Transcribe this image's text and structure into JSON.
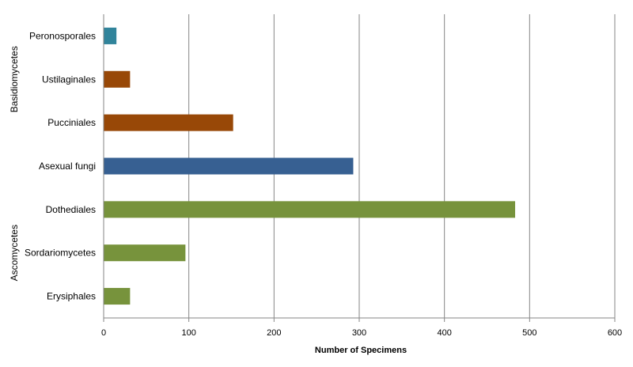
{
  "chart_data": {
    "type": "bar",
    "orientation": "horizontal",
    "categories": [
      "Peronosporales",
      "Ustilaginales",
      "Pucciniales",
      "Asexual fungi",
      "Dothediales",
      "Sordariomycetes",
      "Erysiphales"
    ],
    "values": [
      15,
      31,
      152,
      293,
      483,
      96,
      31
    ],
    "colors": [
      "#31849B",
      "#984807",
      "#984807",
      "#376092",
      "#77933C",
      "#77933C",
      "#77933C"
    ],
    "xlabel": "Number of Specimens",
    "xlim": [
      0,
      600
    ],
    "xticks": [
      0,
      100,
      200,
      300,
      400,
      500,
      600
    ],
    "grid": "vertical",
    "groups": [
      {
        "label": "Basidiomycetes",
        "categories": [
          "Peronosporales",
          "Ustilaginales",
          "Pucciniales"
        ]
      },
      {
        "label": "Ascomycetes",
        "categories": [
          "Dothediales",
          "Sordariomycetes",
          "Erysiphales"
        ]
      }
    ]
  }
}
